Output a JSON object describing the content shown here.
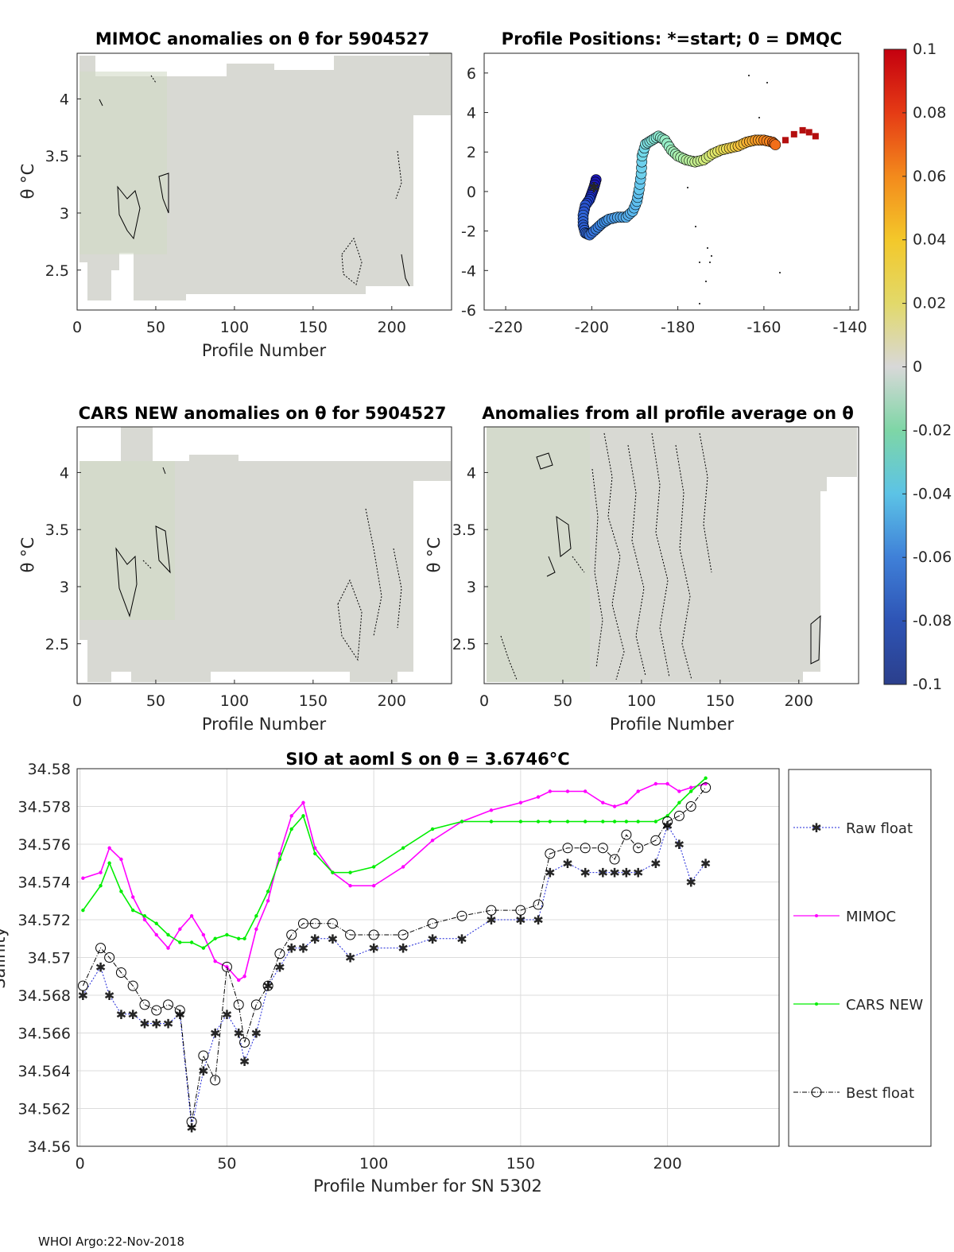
{
  "footer": "WHOI Argo:22-Nov-2018",
  "chart_data": [
    {
      "type": "heatmap",
      "title": "MIMOC anomalies on θ  for 5904527",
      "xlabel": "Profile Number",
      "ylabel": "θ °C",
      "xlim": [
        0,
        238
      ],
      "ylim": [
        2.15,
        4.4
      ],
      "xticks": [
        0,
        50,
        100,
        150,
        200
      ],
      "yticks": [
        2.5,
        3,
        3.5,
        4
      ]
    },
    {
      "type": "scatter",
      "title": "Profile Positions: *=start; 0 = DMQC",
      "xlim": [
        -225,
        -138
      ],
      "ylim": [
        -6,
        7
      ],
      "xticks": [
        -220,
        -200,
        -180,
        -160,
        -140
      ],
      "yticks": [
        -6,
        -4,
        -2,
        0,
        2,
        4,
        6
      ],
      "track": [
        [
          -199,
          0.6
        ],
        [
          -199.5,
          0.2
        ],
        [
          -200,
          -0.1
        ],
        [
          -200.5,
          -0.4
        ],
        [
          -201.5,
          -0.7
        ],
        [
          -202,
          -1.2
        ],
        [
          -202,
          -1.7
        ],
        [
          -201.5,
          -2.1
        ],
        [
          -200.5,
          -2.2
        ],
        [
          -199,
          -1.9
        ],
        [
          -197.5,
          -1.6
        ],
        [
          -196,
          -1.4
        ],
        [
          -194,
          -1.3
        ],
        [
          -192,
          -1.3
        ],
        [
          -190.5,
          -1.0
        ],
        [
          -189.5,
          -0.5
        ],
        [
          -189,
          0.1
        ],
        [
          -188.5,
          0.9
        ],
        [
          -188.3,
          1.8
        ],
        [
          -187.5,
          2.4
        ],
        [
          -186,
          2.6
        ],
        [
          -184.5,
          2.8
        ],
        [
          -183,
          2.6
        ],
        [
          -181.5,
          2.1
        ],
        [
          -180,
          1.8
        ],
        [
          -178,
          1.6
        ],
        [
          -176,
          1.5
        ],
        [
          -174,
          1.6
        ],
        [
          -172,
          1.9
        ],
        [
          -170,
          2.1
        ],
        [
          -168,
          2.2
        ],
        [
          -166,
          2.3
        ],
        [
          -164,
          2.5
        ],
        [
          -162,
          2.6
        ],
        [
          -160,
          2.6
        ],
        [
          -158,
          2.5
        ],
        [
          -157,
          2.3
        ]
      ],
      "track_colors": [
        "#1c17b8",
        "#1b22c4",
        "#1e2cc9",
        "#2040ce",
        "#2a55d2",
        "#2f64d6",
        "#2d5fd4",
        "#3168d8",
        "#3572dc",
        "#3a80e0",
        "#3f8ee4",
        "#4a9ae6",
        "#51a6ea",
        "#58b0ed",
        "#5ab8ee",
        "#5fc0ef",
        "#66c8ee",
        "#6dd0ec",
        "#72d8e8",
        "#7ddfe0",
        "#85e6d8",
        "#8eead0",
        "#97edc6",
        "#a1efbb",
        "#acf0ad",
        "#b8f09e",
        "#c5ee8e",
        "#d2eb7c",
        "#dfe66a",
        "#e9de58",
        "#f0d14a",
        "#f4c13c",
        "#f6ae30",
        "#f79a26",
        "#f6841e",
        "#f36e18",
        "#ee5a14"
      ],
      "square_marks": [
        [
          -155,
          2.6
        ],
        [
          -153,
          2.9
        ],
        [
          -151,
          3.1
        ],
        [
          -149.5,
          3.0
        ],
        [
          -148,
          2.8
        ]
      ]
    },
    {
      "type": "heatmap",
      "title": "CARS NEW anomalies on θ for 5904527",
      "xlabel": "Profile Number",
      "ylabel": "θ °C",
      "xlim": [
        0,
        238
      ],
      "ylim": [
        2.15,
        4.4
      ],
      "xticks": [
        0,
        50,
        100,
        150,
        200
      ],
      "yticks": [
        2.5,
        3,
        3.5,
        4
      ]
    },
    {
      "type": "heatmap",
      "title": "Anomalies from all profile average on θ",
      "xlabel": "Profile Number",
      "ylabel": "θ °C",
      "xlim": [
        0,
        238
      ],
      "ylim": [
        2.15,
        4.4
      ],
      "xticks": [
        0,
        50,
        100,
        150,
        200
      ],
      "yticks": [
        2.5,
        3,
        3.5,
        4
      ]
    },
    {
      "type": "colorbar",
      "range": [
        -0.1,
        0.1
      ],
      "ticks": [
        "0.1",
        "0.08",
        "0.06",
        "0.04",
        "0.02",
        "0",
        "-0.02",
        "-0.04",
        "-0.06",
        "-0.08",
        "-0.1"
      ]
    },
    {
      "type": "line",
      "title": "SIO at aoml S on θ = 3.6746°C",
      "xlabel": "Profile Number for SN 5302",
      "ylabel": "Salinity",
      "xlim": [
        -1,
        238
      ],
      "ylim": [
        34.56,
        34.58
      ],
      "xticks": [
        0,
        50,
        100,
        150,
        200
      ],
      "yticks": [
        "34.56",
        "34.562",
        "34.564",
        "34.566",
        "34.568",
        "34.57",
        "34.572",
        "34.574",
        "34.576",
        "34.578",
        "34.58"
      ],
      "legend_position": "outside-right",
      "x": [
        1,
        7,
        10,
        14,
        18,
        22,
        26,
        30,
        34,
        38,
        42,
        46,
        50,
        54,
        56,
        60,
        64,
        68,
        72,
        76,
        80,
        86,
        92,
        100,
        110,
        120,
        130,
        140,
        150,
        156,
        160,
        166,
        172,
        178,
        182,
        186,
        190,
        196,
        200,
        204,
        208,
        213
      ],
      "series": [
        {
          "name": "Raw float",
          "values": [
            34.568,
            34.5695,
            34.568,
            34.567,
            34.567,
            34.5665,
            34.5665,
            34.5665,
            34.567,
            34.561,
            34.564,
            34.566,
            34.567,
            34.566,
            34.5645,
            34.566,
            34.5685,
            34.5695,
            34.5705,
            34.5705,
            34.571,
            34.571,
            34.57,
            34.5705,
            34.5705,
            34.571,
            34.571,
            34.572,
            34.572,
            34.572,
            34.5745,
            34.575,
            34.5745,
            34.5745,
            34.5745,
            34.5745,
            34.5745,
            34.575,
            34.577,
            34.576,
            34.574,
            34.575
          ]
        },
        {
          "name": "MIMOC",
          "values": [
            34.5742,
            34.5745,
            34.5758,
            34.5752,
            34.5732,
            34.572,
            34.5712,
            34.5705,
            34.5715,
            34.5722,
            34.5712,
            34.5698,
            34.5695,
            34.5688,
            34.569,
            34.5715,
            34.573,
            34.5755,
            34.5775,
            34.5782,
            34.5758,
            34.5745,
            34.5738,
            34.5738,
            34.5748,
            34.5762,
            34.5772,
            34.5778,
            34.5782,
            34.5785,
            34.5788,
            34.5788,
            34.5788,
            34.5782,
            34.578,
            34.5782,
            34.5788,
            34.5792,
            34.5792,
            34.5788,
            34.579,
            34.5792
          ]
        },
        {
          "name": "CARS NEW",
          "values": [
            34.5725,
            34.5738,
            34.575,
            34.5735,
            34.5725,
            34.5722,
            34.5718,
            34.5712,
            34.5708,
            34.5708,
            34.5705,
            34.571,
            34.5712,
            34.571,
            34.571,
            34.5722,
            34.5735,
            34.5752,
            34.5768,
            34.5775,
            34.5755,
            34.5745,
            34.5745,
            34.5748,
            34.5758,
            34.5768,
            34.5772,
            34.5772,
            34.5772,
            34.5772,
            34.5772,
            34.5772,
            34.5772,
            34.5772,
            34.5772,
            34.5772,
            34.5772,
            34.5772,
            34.5775,
            34.5782,
            34.5788,
            34.5795
          ]
        },
        {
          "name": "Best float",
          "values": [
            34.5685,
            34.5705,
            34.57,
            34.5692,
            34.5685,
            34.5675,
            34.5672,
            34.5675,
            34.5672,
            34.5613,
            34.5648,
            34.5635,
            34.5695,
            34.5675,
            34.5655,
            34.5675,
            34.5685,
            34.5702,
            34.5712,
            34.5718,
            34.5718,
            34.5718,
            34.5712,
            34.5712,
            34.5712,
            34.5718,
            34.5722,
            34.5725,
            34.5725,
            34.5728,
            34.5755,
            34.5758,
            34.5758,
            34.5758,
            34.5752,
            34.5765,
            34.5758,
            34.5762,
            34.5772,
            34.5775,
            34.578,
            34.579
          ]
        }
      ],
      "series_colors": [
        "#1f27d8",
        "#ff00ff",
        "#00ee00",
        "#000000"
      ]
    }
  ]
}
